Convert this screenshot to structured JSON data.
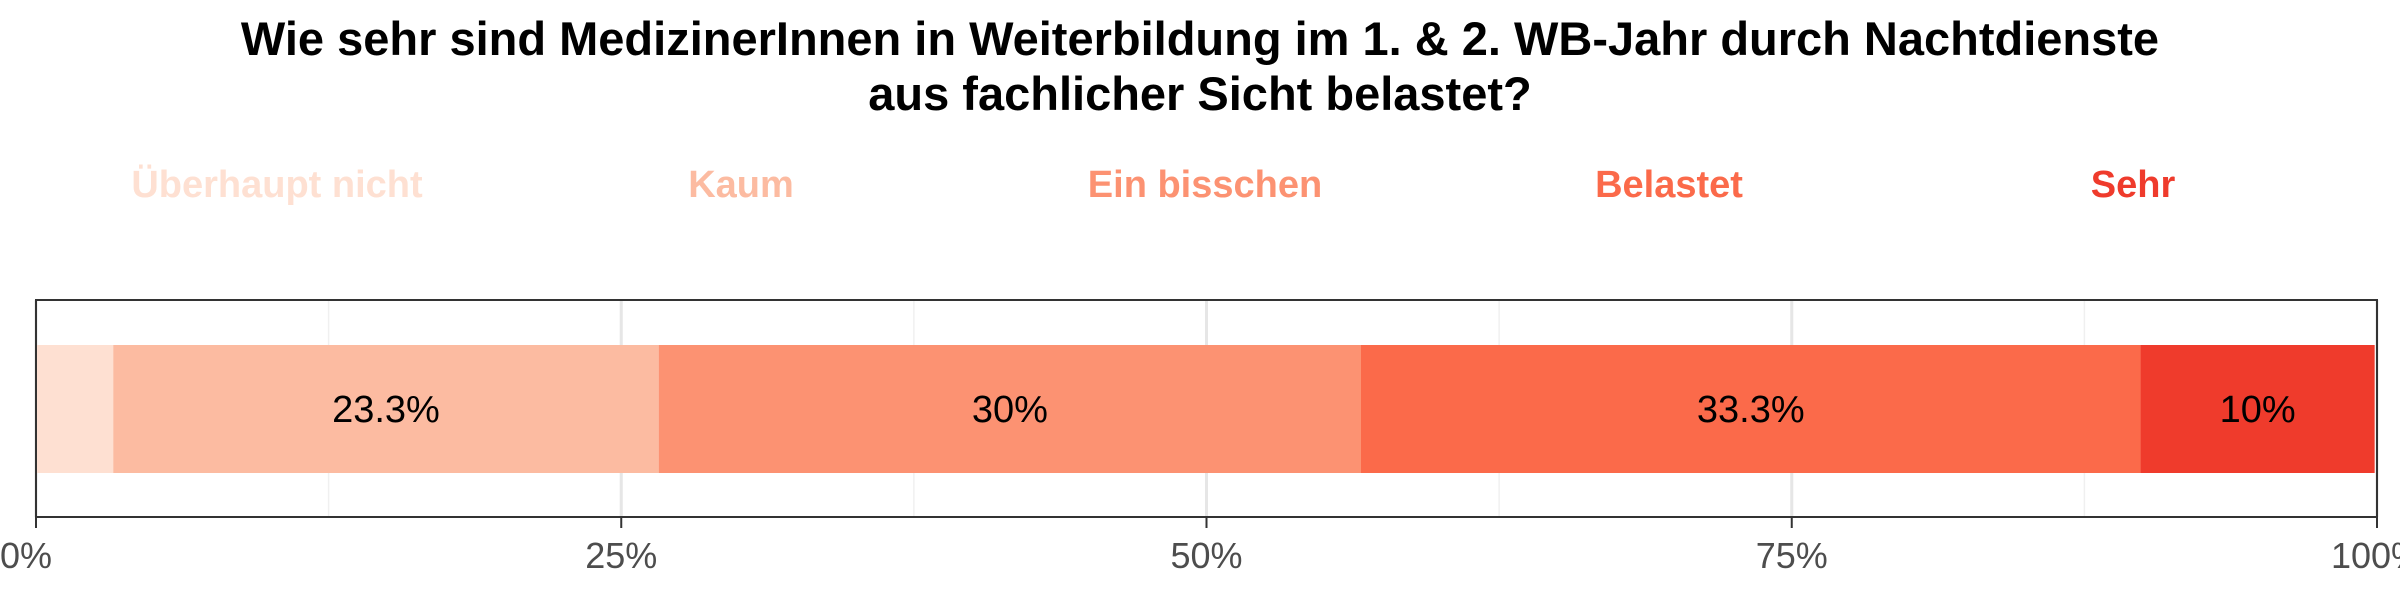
{
  "chart_data": {
    "type": "bar",
    "orientation": "horizontal",
    "stacked": true,
    "title_lines": [
      "Wie sehr sind MedizinerInnen in Weiterbildung im 1. & 2. WB-Jahr durch Nachtdienste",
      "aus fachlicher Sicht belastet?"
    ],
    "xlabel": "",
    "ylabel": "",
    "xlim": [
      0,
      100
    ],
    "x_ticks": [
      0,
      25,
      50,
      75,
      100
    ],
    "x_tick_labels": [
      "0%",
      "25%",
      "50%",
      "75%",
      "100%"
    ],
    "grid": true,
    "legend_position": "top",
    "series": [
      {
        "name": "Überhaupt nicht",
        "value": 3.3,
        "label": "",
        "color": "#FEE0D2"
      },
      {
        "name": "Kaum",
        "value": 23.3,
        "label": "23.3%",
        "color": "#FCBBA1"
      },
      {
        "name": "Ein bisschen",
        "value": 30.0,
        "label": "30%",
        "color": "#FC9272"
      },
      {
        "name": "Belastet",
        "value": 33.3,
        "label": "33.3%",
        "color": "#FB6A4A"
      },
      {
        "name": "Sehr",
        "value": 10.0,
        "label": "10%",
        "color": "#EF3B2C"
      }
    ]
  }
}
